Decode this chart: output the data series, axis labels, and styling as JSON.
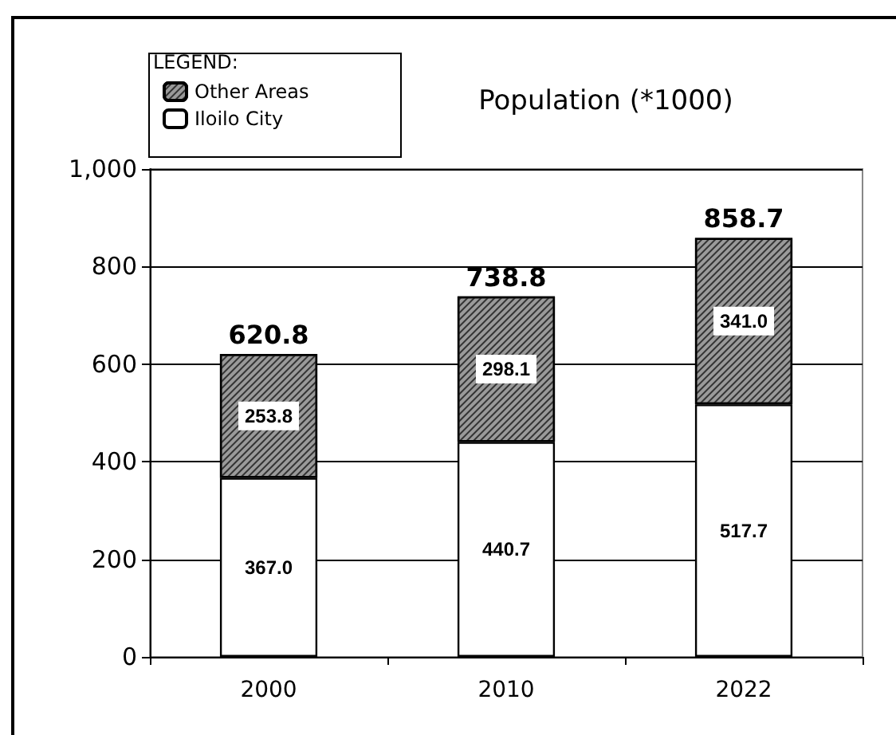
{
  "chart_data": {
    "type": "bar",
    "title": "Population (*1000)",
    "legend_title": "LEGEND:",
    "categories": [
      "2000",
      "2010",
      "2022"
    ],
    "stacked": true,
    "series": [
      {
        "name": "Iloilo City",
        "color": "#ffffff",
        "values": [
          367.0,
          440.7,
          517.7
        ],
        "value_labels": [
          "367.0",
          "440.7",
          "517.7"
        ]
      },
      {
        "name": "Other Areas",
        "color": "#9a9a9a",
        "values": [
          253.8,
          298.1,
          341.0
        ],
        "value_labels": [
          "253.8",
          "298.1",
          "341.0"
        ]
      }
    ],
    "totals": [
      "620.8",
      "738.8",
      "858.7"
    ],
    "ylim": [
      0,
      1000
    ],
    "yticks": [
      0,
      200,
      400,
      600,
      800,
      {
        "value": 1000,
        "label": "1,000"
      }
    ],
    "grid": "y",
    "legend": "top left"
  }
}
